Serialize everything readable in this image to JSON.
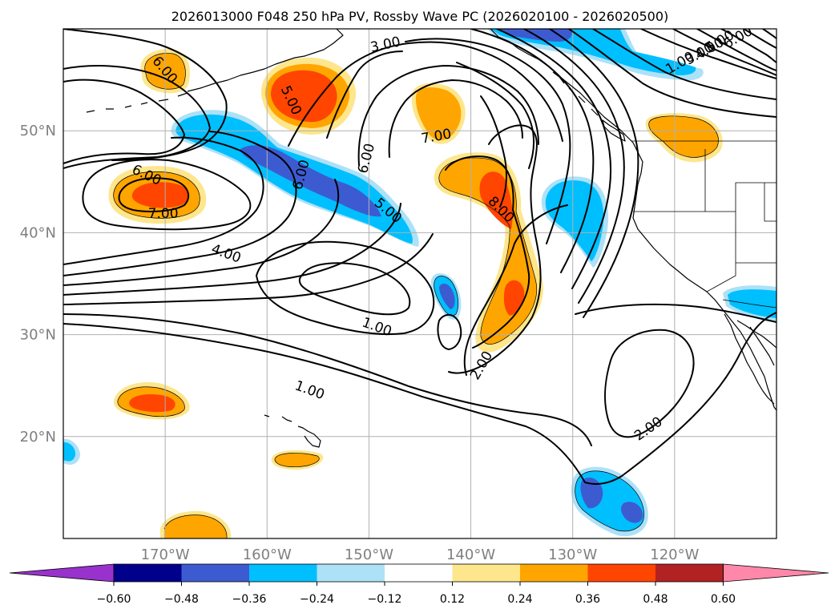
{
  "title": "2026013000 F048 250 hPa PV, Rossby Wave PC (2026020100 - 2026020500)",
  "colors": {
    "frame": "#000000",
    "grid": "#b0b0b0",
    "axis_text": "#808080",
    "contour": "#000000",
    "coast": "#000000"
  },
  "map": {
    "lon_range": [
      -180,
      -110
    ],
    "lat_range": [
      10,
      60
    ],
    "lon_ticks": [
      {
        "value": -170,
        "label": "170°W"
      },
      {
        "value": -160,
        "label": "160°W"
      },
      {
        "value": -150,
        "label": "150°W"
      },
      {
        "value": -140,
        "label": "140°W"
      },
      {
        "value": -130,
        "label": "130°W"
      },
      {
        "value": -120,
        "label": "120°W"
      }
    ],
    "lat_ticks": [
      {
        "value": 20,
        "label": "20°N"
      },
      {
        "value": 30,
        "label": "30°N"
      },
      {
        "value": 40,
        "label": "40°N"
      },
      {
        "value": 50,
        "label": "50°N"
      }
    ],
    "contour_labels": [
      {
        "text": "6.00",
        "lon": -170.0,
        "lat": 56.0,
        "angle": 50
      },
      {
        "text": "5.00",
        "lon": -157.6,
        "lat": 53.0,
        "angle": 65
      },
      {
        "text": "3.00",
        "lon": -148.4,
        "lat": 58.5,
        "angle": -12
      },
      {
        "text": "7.00",
        "lon": -143.4,
        "lat": 49.5,
        "angle": -10
      },
      {
        "text": "6.00",
        "lon": -150.3,
        "lat": 47.3,
        "angle": -75
      },
      {
        "text": "6.00",
        "lon": -156.7,
        "lat": 45.7,
        "angle": -75
      },
      {
        "text": "5.00",
        "lon": -148.1,
        "lat": 42.2,
        "angle": 40
      },
      {
        "text": "8.00",
        "lon": -137.0,
        "lat": 42.3,
        "angle": 45
      },
      {
        "text": "6.00",
        "lon": -171.8,
        "lat": 45.7,
        "angle": 25
      },
      {
        "text": "7.00",
        "lon": -170.2,
        "lat": 41.9,
        "angle": 0
      },
      {
        "text": "4.00",
        "lon": -164.0,
        "lat": 38.0,
        "angle": 20
      },
      {
        "text": "1.00",
        "lon": -149.2,
        "lat": 30.8,
        "angle": 20
      },
      {
        "text": "1.00",
        "lon": -155.8,
        "lat": 24.6,
        "angle": 20
      },
      {
        "text": "2.00",
        "lon": -139.0,
        "lat": 27.0,
        "angle": -60
      },
      {
        "text": "2.00",
        "lon": -122.6,
        "lat": 20.8,
        "angle": -35
      },
      {
        "text": "5.00",
        "lon": -115.6,
        "lat": 58.8,
        "angle": -30
      },
      {
        "text": "6.00",
        "lon": -113.8,
        "lat": 59.2,
        "angle": -30
      },
      {
        "text": "4.00",
        "lon": -116.6,
        "lat": 58.1,
        "angle": -30
      },
      {
        "text": "3.00",
        "lon": -117.6,
        "lat": 57.6,
        "angle": -30
      },
      {
        "text": "1.00",
        "lon": -119.5,
        "lat": 56.7,
        "angle": -30
      }
    ]
  },
  "colorbar": {
    "colors": [
      "#9932CC",
      "#00008B",
      "#3D5BD0",
      "#00BFFF",
      "#ADE1F7",
      "#FFFFFF",
      "#FDE68C",
      "#FFA500",
      "#FF4500",
      "#B22222",
      "#FF88AA"
    ],
    "tick_labels": [
      "−0.60",
      "−0.48",
      "−0.36",
      "−0.24",
      "−0.12",
      "0.12",
      "0.24",
      "0.36",
      "0.48",
      "0.60"
    ]
  }
}
